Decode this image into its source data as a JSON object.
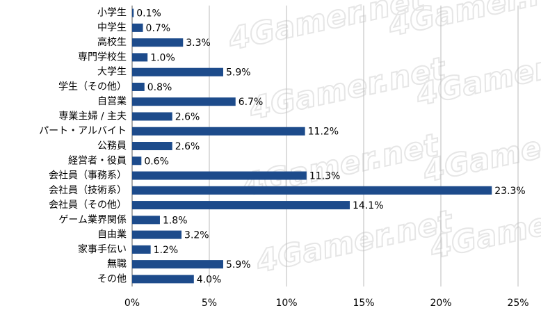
{
  "chart_data": {
    "type": "barh",
    "watermark": "4Gamer.net",
    "categories": [
      "小学生",
      "中学生",
      "高校生",
      "専門学校生",
      "大学生",
      "学生（その他）",
      "自営業",
      "専業主婦 / 主夫",
      "パート・アルバイト",
      "公務員",
      "経営者・役員",
      "会社員（事務系）",
      "会社員（技術系）",
      "会社員（その他）",
      "ゲーム業界関係",
      "自由業",
      "家事手伝い",
      "無職",
      "その他"
    ],
    "values": [
      0.1,
      0.7,
      3.3,
      1.0,
      5.9,
      0.8,
      6.7,
      2.6,
      11.2,
      2.6,
      0.6,
      11.3,
      23.3,
      14.1,
      1.8,
      3.2,
      1.2,
      5.9,
      4.0
    ],
    "value_labels": [
      "0.1%",
      "0.7%",
      "3.3%",
      "1.0%",
      "5.9%",
      "0.8%",
      "6.7%",
      "2.6%",
      "11.2%",
      "2.6%",
      "0.6%",
      "11.3%",
      "23.3%",
      "14.1%",
      "1.8%",
      "3.2%",
      "1.2%",
      "5.9%",
      "4.0%"
    ],
    "color": "#1d4b8b",
    "xlim": [
      0,
      25
    ],
    "xticks": [
      {
        "value": 0,
        "label": "0%"
      },
      {
        "value": 5,
        "label": "5%"
      },
      {
        "value": 10,
        "label": "10%"
      },
      {
        "value": 15,
        "label": "15%"
      },
      {
        "value": 20,
        "label": "20%"
      },
      {
        "value": 25,
        "label": "25%"
      }
    ],
    "grid": true
  }
}
